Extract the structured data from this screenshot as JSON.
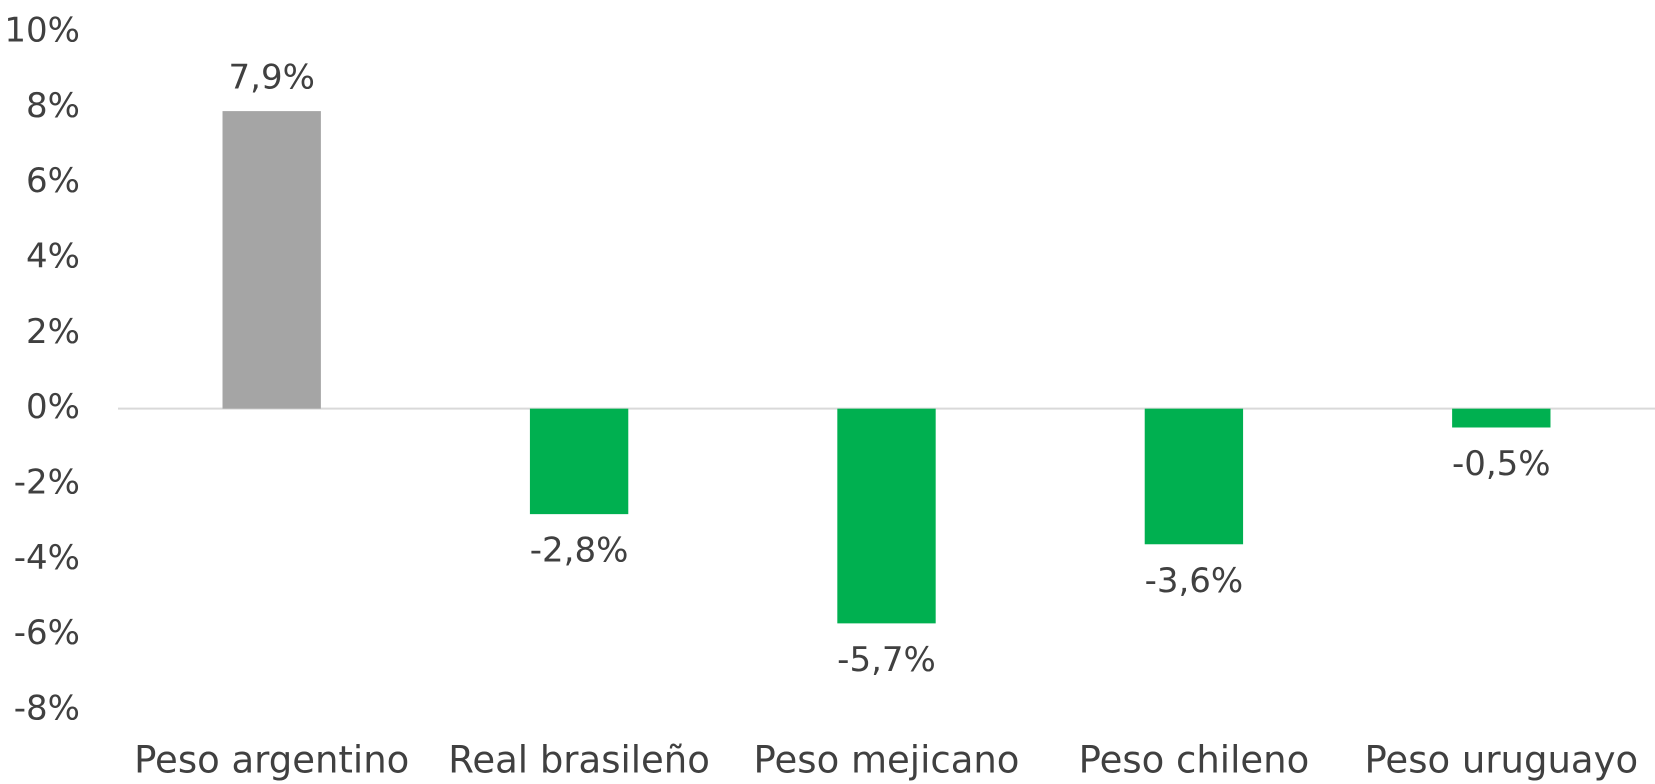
{
  "chart_data": {
    "type": "bar",
    "categories": [
      "Peso argentino",
      "Real brasileño",
      "Peso mejicano",
      "Peso chileno",
      "Peso uruguayo"
    ],
    "values": [
      7.9,
      -2.8,
      -5.7,
      -3.6,
      -0.5
    ],
    "value_labels": [
      "7,9%",
      "-2,8%",
      "-5,7%",
      "-3,6%",
      "-0,5%"
    ],
    "colors": [
      "#a5a5a5",
      "#00b050",
      "#00b050",
      "#00b050",
      "#00b050"
    ],
    "ylim": [
      -8,
      10
    ],
    "yticks": [
      {
        "value": -8,
        "label": "-8%"
      },
      {
        "value": -6,
        "label": "-6%"
      },
      {
        "value": -4,
        "label": "-4%"
      },
      {
        "value": -2,
        "label": "-2%"
      },
      {
        "value": 0,
        "label": "0%"
      },
      {
        "value": 2,
        "label": "2%"
      },
      {
        "value": 4,
        "label": "4%"
      },
      {
        "value": 6,
        "label": "6%"
      },
      {
        "value": 8,
        "label": "8%"
      },
      {
        "value": 10,
        "label": "10%"
      }
    ],
    "grid": false
  }
}
